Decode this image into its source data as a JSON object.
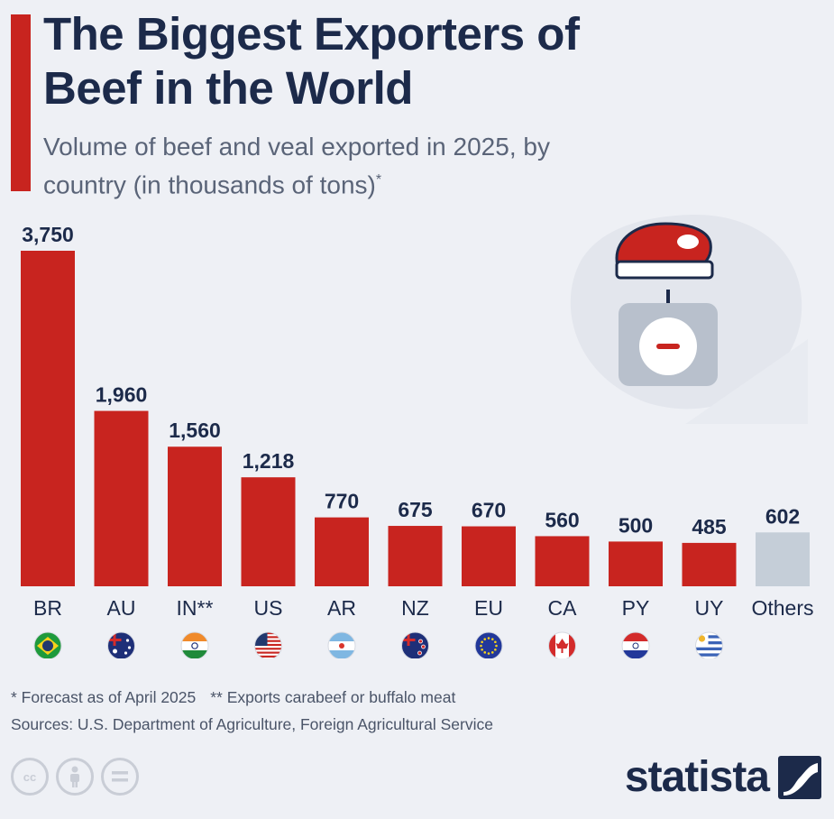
{
  "header": {
    "title": "The Biggest Exporters of Beef in the World",
    "subtitle": "Volume of beef and veal exported in 2025, by country (in thousands of tons)",
    "subtitle_mark": "*"
  },
  "chart_data": {
    "type": "bar",
    "title": "The Biggest Exporters of Beef in the World",
    "subtitle": "Volume of beef and veal exported in 2025, by country (in thousands of tons)*",
    "categories": [
      "BR",
      "AU",
      "IN**",
      "US",
      "AR",
      "NZ",
      "EU",
      "CA",
      "PY",
      "UY",
      "Others"
    ],
    "values": [
      3750,
      1960,
      1560,
      1218,
      770,
      675,
      670,
      560,
      500,
      485,
      602
    ],
    "value_labels": [
      "3,750",
      "1,960",
      "1,560",
      "1,218",
      "770",
      "675",
      "670",
      "560",
      "500",
      "485",
      "602"
    ],
    "flags": [
      "brazil",
      "australia",
      "india",
      "usa",
      "argentina",
      "new-zealand",
      "european-union",
      "canada",
      "paraguay",
      "uruguay",
      ""
    ],
    "bar_color": "#c8241f",
    "others_color": "#c5ced8",
    "ylim": [
      0,
      3750
    ],
    "grid": false,
    "legend": "none"
  },
  "illustration": {
    "icon": "meat-on-scale-icon"
  },
  "footnotes": {
    "forecast": "* Forecast as of April 2025",
    "buffalo": "** Exports carabeef or buffalo meat",
    "sources": "Sources: U.S. Department of Agriculture, Foreign Agricultural Service"
  },
  "license_icons": [
    "cc-icon",
    "attribution-icon",
    "no-derivatives-icon"
  ],
  "branding": {
    "name": "statista",
    "icon": "statista-logo-icon"
  },
  "colors": {
    "accent": "#c8241f",
    "text": "#1c2a4a",
    "background": "#eef0f5"
  }
}
